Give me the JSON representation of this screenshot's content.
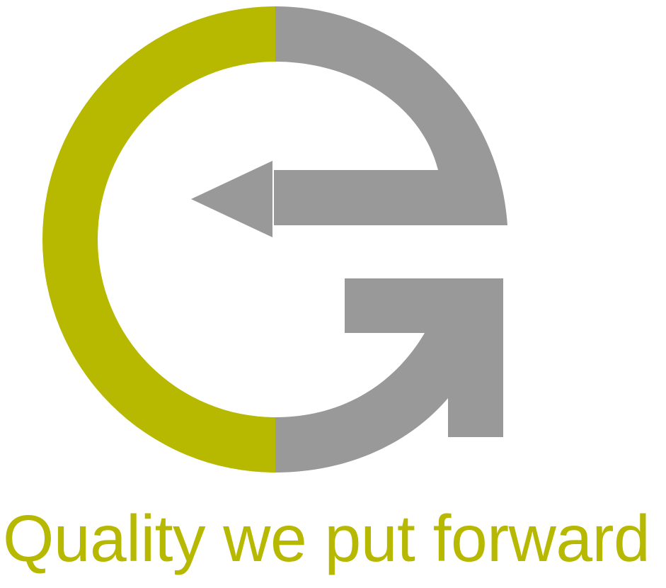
{
  "logo": {
    "icon_name": "eg-circular-arrow-logo-icon",
    "colors": {
      "primary": "#b7b800",
      "secondary": "#999999"
    }
  },
  "tagline": {
    "text": "Quality we put forward",
    "color": "#b7b800"
  }
}
